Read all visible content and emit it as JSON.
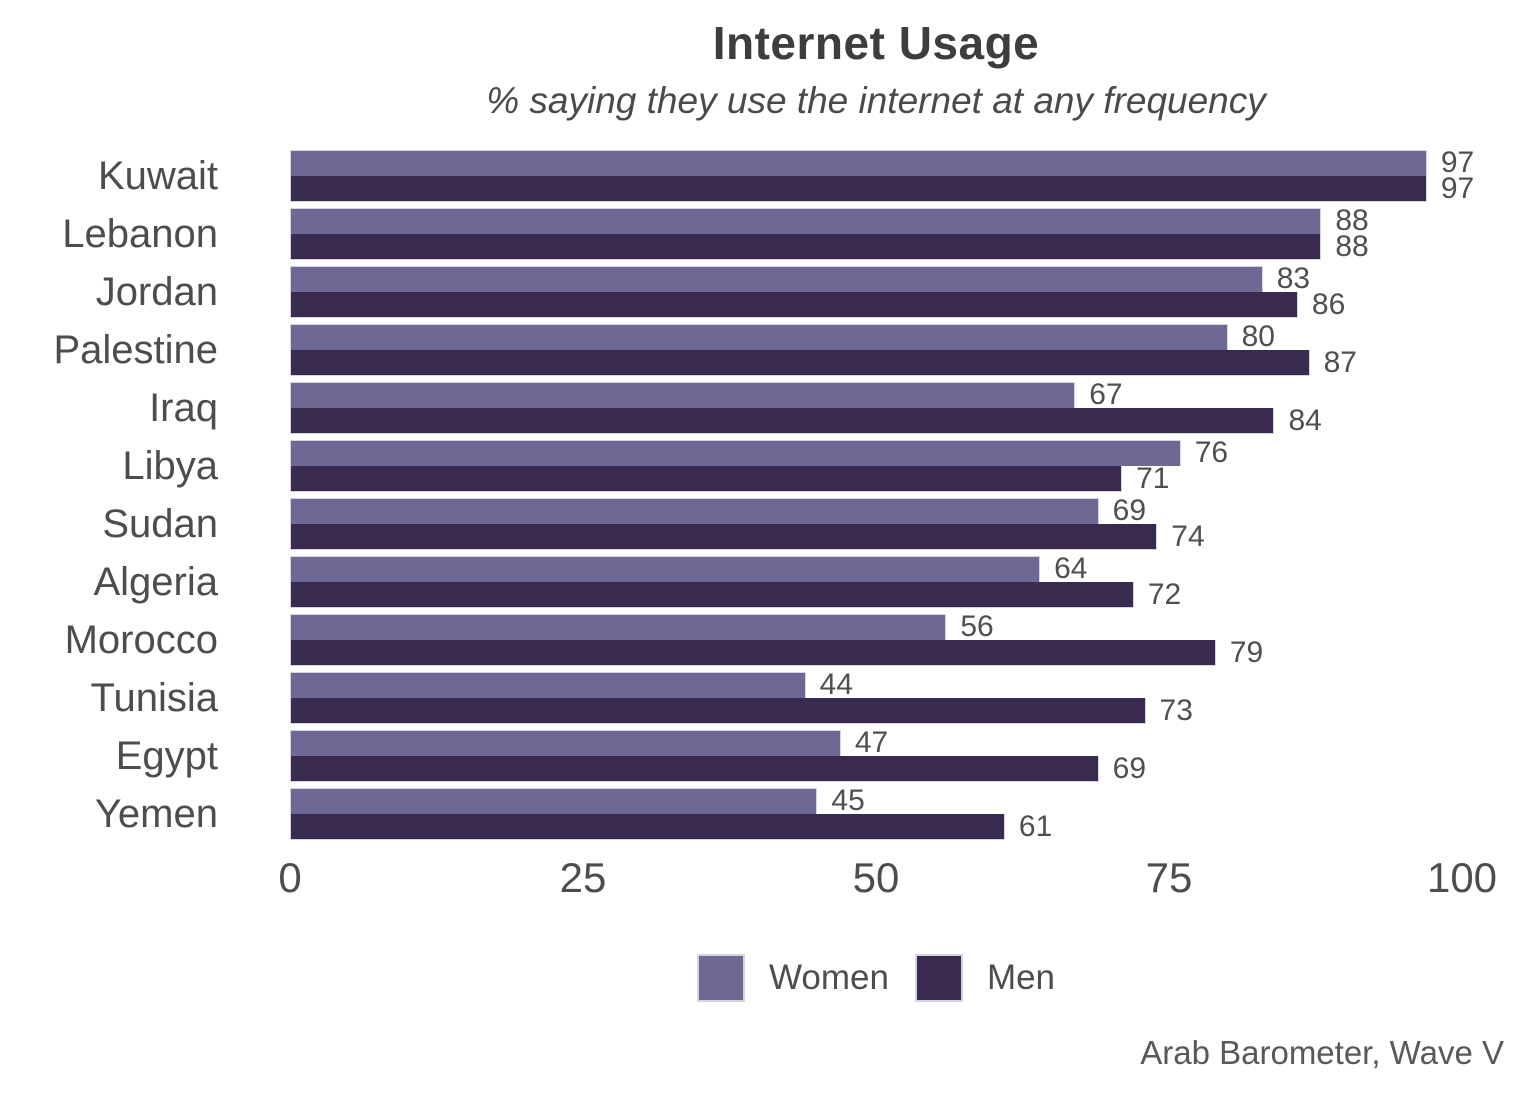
{
  "title": "Internet Usage",
  "subtitle": "% saying they use the internet at any frequency",
  "source": "Arab Barometer, Wave V",
  "legend": {
    "women_label": "Women",
    "men_label": "Men"
  },
  "colors": {
    "women": "#6e6894",
    "men": "#392a50",
    "swatch_border": "#d6d3e2",
    "text": "#4d4d4d",
    "title_text": "#3d3d3d"
  },
  "chart_data": {
    "type": "bar",
    "orientation": "horizontal",
    "title": "Internet Usage",
    "subtitle": "% saying they use the internet at any frequency",
    "categories": [
      "Kuwait",
      "Lebanon",
      "Jordan",
      "Palestine",
      "Iraq",
      "Libya",
      "Sudan",
      "Algeria",
      "Morocco",
      "Tunisia",
      "Egypt",
      "Yemen"
    ],
    "series": [
      {
        "name": "Women",
        "color": "#6e6894",
        "values": [
          97,
          88,
          83,
          80,
          67,
          76,
          69,
          64,
          56,
          44,
          47,
          45
        ]
      },
      {
        "name": "Men",
        "color": "#392a50",
        "values": [
          97,
          88,
          86,
          87,
          84,
          71,
          74,
          72,
          79,
          73,
          69,
          61
        ]
      }
    ],
    "xlabel": "",
    "ylabel": "",
    "xlim": [
      0,
      100
    ],
    "xticks": [
      0,
      25,
      50,
      75,
      100
    ],
    "grid": false,
    "value_labels": true,
    "legend_position": "bottom",
    "source": "Arab Barometer, Wave V"
  }
}
